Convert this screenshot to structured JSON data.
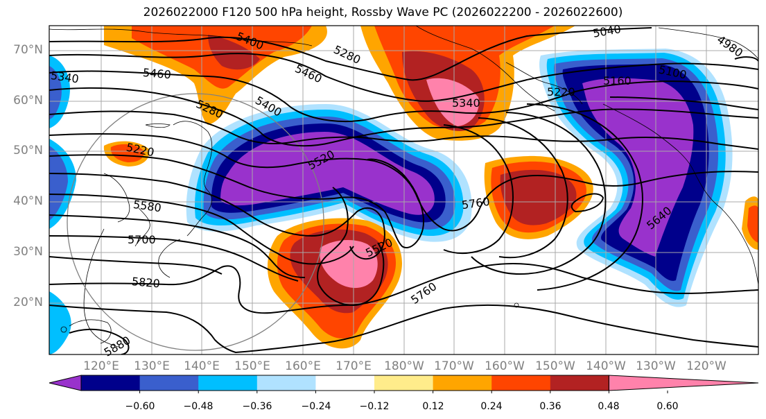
{
  "title": "2026022000 F120 500 hPa height, Rossby Wave PC (2026022200 - 2026022600)",
  "latitude_labels": [
    "70°N",
    "60°N",
    "50°N",
    "40°N",
    "30°N",
    "20°N"
  ],
  "longitude_labels": [
    "120°E",
    "130°E",
    "140°E",
    "150°E",
    "160°E",
    "170°E",
    "180°W",
    "170°W",
    "160°W",
    "150°W",
    "140°W",
    "130°W",
    "120°W"
  ],
  "contour_labels": [
    "5340",
    "5460",
    "5400",
    "5280",
    "5460",
    "5340",
    "5220",
    "5160",
    "5100",
    "5040",
    "4980",
    "5280",
    "5400",
    "5220",
    "5520",
    "5580",
    "5700",
    "5820",
    "5520",
    "5760",
    "5760",
    "5640",
    "5880"
  ],
  "colorbar": {
    "ticks": [
      "−0.60",
      "−0.48",
      "−0.36",
      "−0.24",
      "−0.12",
      "0.12",
      "0.24",
      "0.36",
      "0.48",
      "0.60"
    ],
    "colors": [
      "#9932cc",
      "#00008b",
      "#3a5fcd",
      "#00bfff",
      "#b0e2ff",
      "#ffffff",
      "#ffec8b",
      "#ffa500",
      "#ff4500",
      "#b22222",
      "#ff82ab"
    ]
  }
}
